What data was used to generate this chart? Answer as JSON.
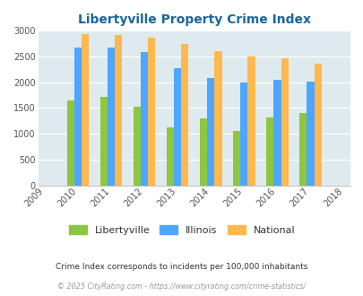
{
  "title": "Libertyville Property Crime Index",
  "years": [
    2009,
    2010,
    2011,
    2012,
    2013,
    2014,
    2015,
    2016,
    2017,
    2018
  ],
  "libertyville": [
    null,
    1650,
    1720,
    1520,
    1130,
    1290,
    1060,
    1310,
    1410,
    null
  ],
  "illinois": [
    null,
    2670,
    2680,
    2580,
    2270,
    2090,
    2000,
    2050,
    2010,
    null
  ],
  "national": [
    null,
    2930,
    2910,
    2860,
    2740,
    2600,
    2500,
    2460,
    2360,
    null
  ],
  "libertyville_color": "#8dc63f",
  "illinois_color": "#4da6ff",
  "national_color": "#ffb84d",
  "bg_color": "#deeaed",
  "title_color": "#1a6699",
  "ylim": [
    0,
    3000
  ],
  "yticks": [
    0,
    500,
    1000,
    1500,
    2000,
    2500,
    3000
  ],
  "footnote1": "Crime Index corresponds to incidents per 100,000 inhabitants",
  "footnote2": "© 2025 CityRating.com - https://www.cityrating.com/crime-statistics/",
  "legend_labels": [
    "Libertyville",
    "Illinois",
    "National"
  ]
}
